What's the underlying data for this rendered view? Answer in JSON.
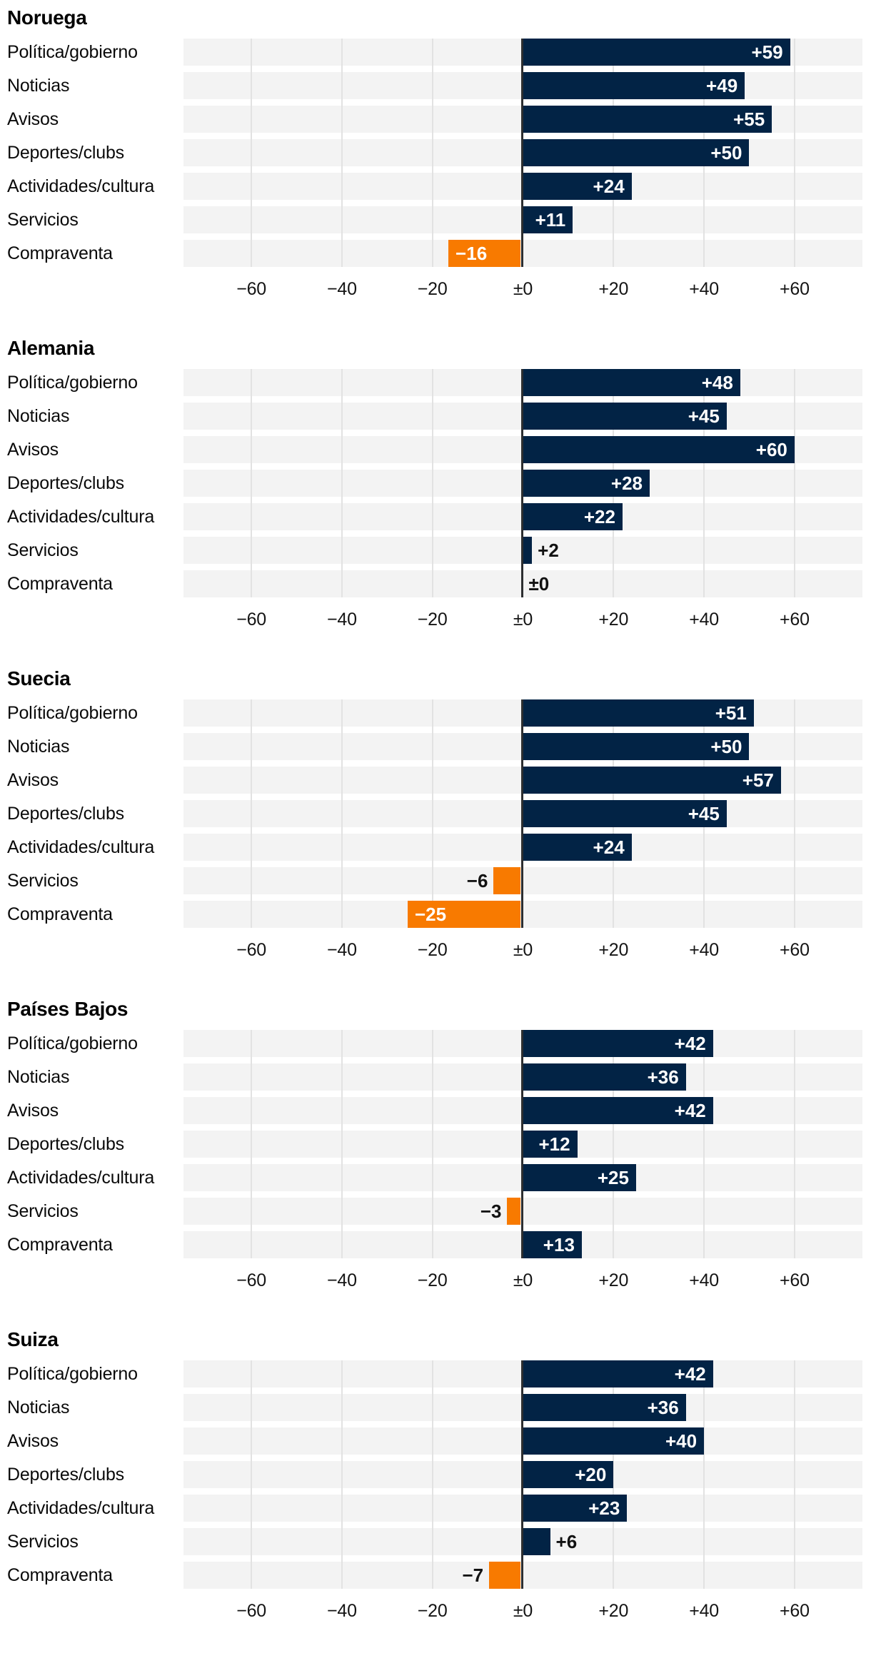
{
  "colors": {
    "bar_positive": "#022345",
    "bar_negative": "#f87a00",
    "row_band": "#f3f3f3",
    "gridline": "#e2e2e2",
    "zero_line": "#2d2f31"
  },
  "chart_data": {
    "type": "bar",
    "orientation": "horizontal",
    "layout": "small-multiples",
    "grid": true,
    "legend": "none",
    "inside_label_min": 10,
    "xlim": [
      -75,
      75
    ],
    "x_ticks": [
      "−60",
      "−40",
      "−20",
      "±0",
      "+20",
      "+40",
      "+60"
    ],
    "x_tick_values": [
      -60,
      -40,
      -20,
      0,
      20,
      40,
      60
    ],
    "categories": [
      "Política/gobierno",
      "Noticias",
      "Avisos",
      "Deportes/clubs",
      "Actividades/cultura",
      "Servicios",
      "Compraventa"
    ],
    "panels": [
      {
        "title": "Noruega",
        "values": [
          59,
          49,
          55,
          50,
          24,
          11,
          -16
        ],
        "labels": [
          "+59",
          "+49",
          "+55",
          "+50",
          "+24",
          "+11",
          "−16"
        ]
      },
      {
        "title": "Alemania",
        "values": [
          48,
          45,
          60,
          28,
          22,
          2,
          0
        ],
        "labels": [
          "+48",
          "+45",
          "+60",
          "+28",
          "+22",
          "+2",
          "±0"
        ]
      },
      {
        "title": "Suecia",
        "values": [
          51,
          50,
          57,
          45,
          24,
          -6,
          -25
        ],
        "labels": [
          "+51",
          "+50",
          "+57",
          "+45",
          "+24",
          "−6",
          "−25"
        ]
      },
      {
        "title": "Países Bajos",
        "values": [
          42,
          36,
          42,
          12,
          25,
          -3,
          13
        ],
        "labels": [
          "+42",
          "+36",
          "+42",
          "+12",
          "+25",
          "−3",
          "+13"
        ]
      },
      {
        "title": "Suiza",
        "values": [
          42,
          36,
          40,
          20,
          23,
          6,
          -7
        ],
        "labels": [
          "+42",
          "+36",
          "+40",
          "+20",
          "+23",
          "+6",
          "−7"
        ]
      }
    ]
  }
}
